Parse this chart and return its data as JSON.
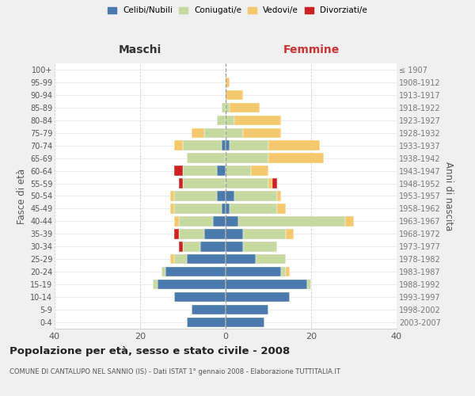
{
  "age_groups": [
    "0-4",
    "5-9",
    "10-14",
    "15-19",
    "20-24",
    "25-29",
    "30-34",
    "35-39",
    "40-44",
    "45-49",
    "50-54",
    "55-59",
    "60-64",
    "65-69",
    "70-74",
    "75-79",
    "80-84",
    "85-89",
    "90-94",
    "95-99",
    "100+"
  ],
  "birth_years": [
    "2003-2007",
    "1998-2002",
    "1993-1997",
    "1988-1992",
    "1983-1987",
    "1978-1982",
    "1973-1977",
    "1968-1972",
    "1963-1967",
    "1958-1962",
    "1953-1957",
    "1948-1952",
    "1943-1947",
    "1938-1942",
    "1933-1937",
    "1928-1932",
    "1923-1927",
    "1918-1922",
    "1913-1917",
    "1908-1912",
    "≤ 1907"
  ],
  "maschi": {
    "celibi": [
      9,
      8,
      12,
      16,
      14,
      9,
      6,
      5,
      3,
      1,
      2,
      0,
      2,
      0,
      1,
      0,
      0,
      0,
      0,
      0,
      0
    ],
    "coniugati": [
      0,
      0,
      0,
      1,
      1,
      3,
      4,
      6,
      8,
      11,
      10,
      10,
      8,
      9,
      9,
      5,
      2,
      1,
      0,
      0,
      0
    ],
    "vedovi": [
      0,
      0,
      0,
      0,
      0,
      1,
      0,
      0,
      1,
      1,
      1,
      0,
      0,
      0,
      2,
      3,
      0,
      0,
      0,
      0,
      0
    ],
    "divorziati": [
      0,
      0,
      0,
      0,
      0,
      0,
      1,
      1,
      0,
      0,
      0,
      1,
      2,
      0,
      0,
      0,
      0,
      0,
      0,
      0,
      0
    ]
  },
  "femmine": {
    "nubili": [
      9,
      10,
      15,
      19,
      13,
      7,
      4,
      4,
      3,
      1,
      2,
      0,
      0,
      0,
      1,
      0,
      0,
      0,
      0,
      0,
      0
    ],
    "coniugate": [
      0,
      0,
      0,
      1,
      1,
      7,
      8,
      10,
      25,
      11,
      10,
      10,
      6,
      10,
      9,
      4,
      2,
      1,
      0,
      0,
      0
    ],
    "vedove": [
      0,
      0,
      0,
      0,
      1,
      0,
      0,
      2,
      2,
      2,
      1,
      1,
      4,
      13,
      12,
      9,
      11,
      7,
      4,
      1,
      0
    ],
    "divorziate": [
      0,
      0,
      0,
      0,
      0,
      0,
      0,
      0,
      0,
      0,
      0,
      1,
      0,
      0,
      0,
      0,
      0,
      0,
      0,
      0,
      0
    ]
  },
  "colors": {
    "celibi_nubili": "#4a7aab",
    "coniugati": "#c5d9a0",
    "vedovi": "#f5c86e",
    "divorziati": "#cc2222"
  },
  "xlim": 40,
  "title": "Popolazione per età, sesso e stato civile - 2008",
  "subtitle": "COMUNE DI CANTALUPO NEL SANNIO (IS) - Dati ISTAT 1° gennaio 2008 - Elaborazione TUTTITALIA.IT",
  "ylabel_left": "Fasce di età",
  "ylabel_right": "Anni di nascita",
  "xlabel_maschi": "Maschi",
  "xlabel_femmine": "Femmine",
  "legend_labels": [
    "Celibi/Nubili",
    "Coniugati/e",
    "Vedovi/e",
    "Divorziati/e"
  ],
  "bg_color": "#f0f0f0",
  "plot_bg": "#ffffff"
}
